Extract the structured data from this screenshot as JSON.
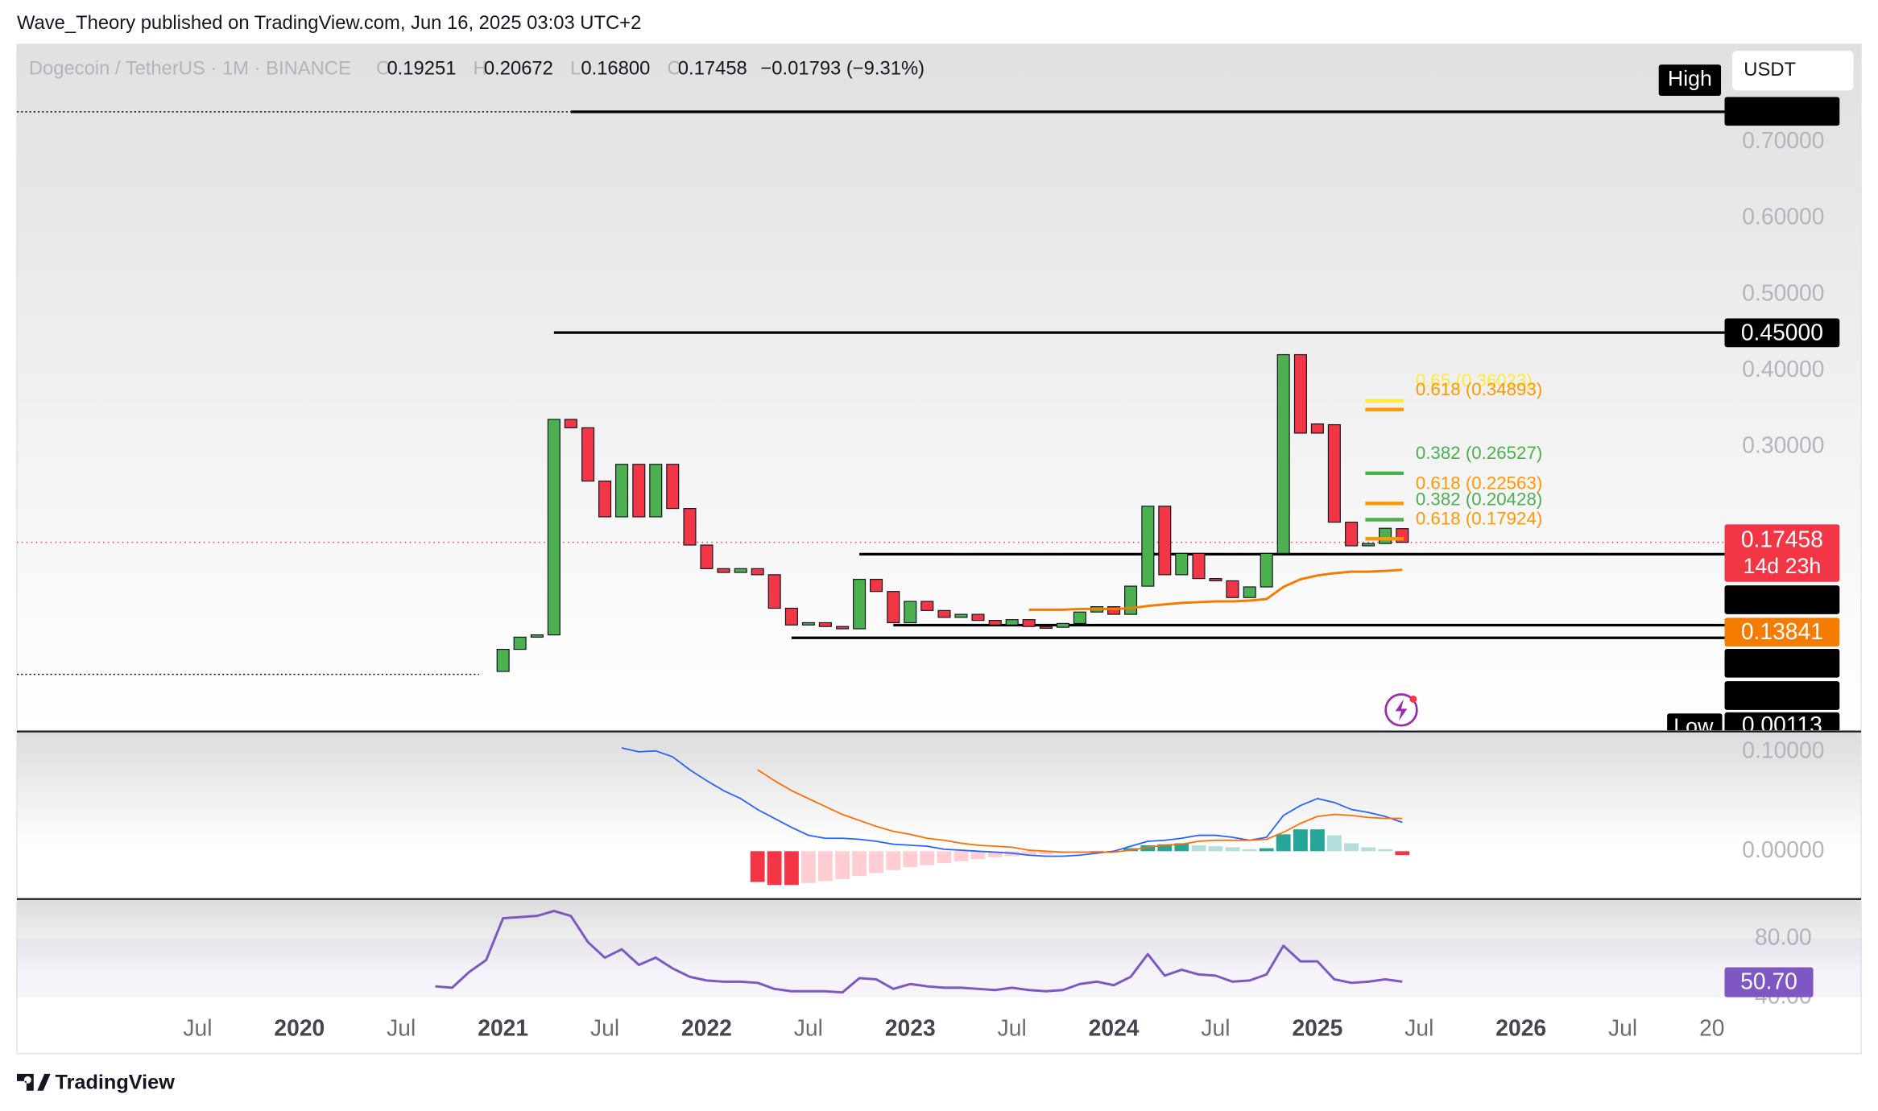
{
  "header": {
    "byline": "Wave_Theory published on TradingView.com, Jun 16, 2025 03:03 UTC+2",
    "symbol": "Dogecoin / TetherUS · 1M · BINANCE",
    "ohlc": [
      {
        "key": "O",
        "value": 0.19251
      },
      {
        "key": "H",
        "value": 0.20672
      },
      {
        "key": "L",
        "value": 0.168,
        "label": "0.16800"
      },
      {
        "key": "C",
        "value": 0.17458
      }
    ],
    "change": "−0.01793 (−9.31%)",
    "currency": "USDT",
    "brand": "TradingView"
  },
  "chart_data": [
    {
      "type": "candlestick",
      "up_color": "#4caf50",
      "down_color": "#f23645",
      "x": [
        2021,
        2021.083,
        2021.167,
        2021.25,
        2021.333,
        2021.417,
        2021.5,
        2021.583,
        2021.667,
        2021.75,
        2021.833,
        2021.917,
        2022,
        2022.083,
        2022.167,
        2022.25,
        2022.333,
        2022.417,
        2022.5,
        2022.583,
        2022.667,
        2022.75,
        2022.833,
        2022.917,
        2023,
        2023.083,
        2023.167,
        2023.25,
        2023.333,
        2023.417,
        2023.5,
        2023.583,
        2023.667,
        2023.75,
        2023.833,
        2023.917,
        2024,
        2024.083,
        2024.167,
        2024.25,
        2024.333,
        2024.417,
        2024.5,
        2024.583,
        2024.667,
        2024.75,
        2024.833,
        2024.917,
        2025,
        2025.083,
        2025.167,
        2025.25,
        2025.333,
        2025.417
      ],
      "open": [
        0.005,
        0.034,
        0.05,
        0.053,
        0.336,
        0.325,
        0.255,
        0.208,
        0.277,
        0.208,
        0.277,
        0.219,
        0.171,
        0.14,
        0.135,
        0.14,
        0.132,
        0.088,
        0.066,
        0.069,
        0.064,
        0.061,
        0.126,
        0.11,
        0.069,
        0.097,
        0.085,
        0.076,
        0.08,
        0.072,
        0.066,
        0.073,
        0.064,
        0.063,
        0.068,
        0.083,
        0.09,
        0.08,
        0.117,
        0.222,
        0.132,
        0.16,
        0.127,
        0.124,
        0.102,
        0.116,
        0.16,
        0.421,
        0.33,
        0.329,
        0.201,
        0.17,
        0.173,
        0.19251
      ],
      "high": {
        "value": 0.73995,
        "label": "High"
      },
      "low": {
        "value": 0.00113,
        "label": "Low"
      },
      "close": [
        0.034,
        0.05,
        0.053,
        0.336,
        0.325,
        0.255,
        0.208,
        0.277,
        0.208,
        0.277,
        0.219,
        0.171,
        0.14,
        0.135,
        0.14,
        0.132,
        0.088,
        0.066,
        0.069,
        0.064,
        0.061,
        0.126,
        0.11,
        0.069,
        0.097,
        0.085,
        0.076,
        0.08,
        0.072,
        0.066,
        0.073,
        0.064,
        0.063,
        0.068,
        0.083,
        0.09,
        0.08,
        0.117,
        0.222,
        0.132,
        0.16,
        0.127,
        0.124,
        0.102,
        0.116,
        0.16,
        0.421,
        0.318,
        0.318,
        0.201,
        0.17,
        0.173,
        0.193,
        0.17458
      ],
      "xlim": [
        2018.612,
        2027
      ],
      "xticks": [
        {
          "value": 2019.5,
          "label": "Jul"
        },
        2020,
        {
          "value": 2020.5,
          "label": "Jul"
        },
        2021,
        {
          "value": 2021.5,
          "label": "Jul"
        },
        2022,
        {
          "value": 2022.5,
          "label": "Jul"
        },
        2023,
        {
          "value": 2023.5,
          "label": "Jul"
        },
        2024,
        {
          "value": 2024.5,
          "label": "Jul"
        },
        2025,
        {
          "value": 2025.5,
          "label": "Jul"
        },
        2026,
        {
          "value": 2026.5,
          "label": "Jul"
        },
        {
          "value": 2027,
          "label": "20"
        }
      ],
      "ylim": [
        -0.0723,
        0.8286
      ],
      "yticks": [
        {
          "value": 0.3,
          "label": "0.30000"
        },
        {
          "value": 0.4,
          "label": "0.40000"
        },
        {
          "value": 0.5,
          "label": "0.50000"
        },
        {
          "value": 0.6,
          "label": "0.60000"
        },
        {
          "value": 0.7,
          "label": "0.70000"
        }
      ],
      "grid": false,
      "ema": {
        "color": "#f57c00",
        "x": [
          2023.583,
          2023.667,
          2023.75,
          2023.833,
          2023.917,
          2024,
          2024.083,
          2024.167,
          2024.25,
          2024.333,
          2024.417,
          2024.5,
          2024.583,
          2024.667,
          2024.75,
          2024.833,
          2024.917,
          2025,
          2025.083,
          2025.167,
          2025.25,
          2025.333,
          2025.417
        ],
        "values": [
          0.086,
          0.086,
          0.086,
          0.087,
          0.087,
          0.087,
          0.088,
          0.091,
          0.093,
          0.095,
          0.096,
          0.097,
          0.097,
          0.098,
          0.1,
          0.116,
          0.126,
          0.131,
          0.134,
          0.136,
          0.136,
          0.137,
          0.13841
        ]
      },
      "levels": [
        {
          "value": 0.73995,
          "x": 2021.333
        },
        {
          "value": 0.45,
          "label": "0.45000",
          "x": 2021.25
        },
        {
          "value": 0.15893,
          "x": 2022.75
        },
        {
          "value": 0.06581,
          "x": 2022.917
        },
        {
          "value": 0.04914,
          "x": 2022.417
        }
      ],
      "countdown": "14d 23h",
      "fibs": [
        {
          "value": 0.36023,
          "label": "0.65 (0.36023)",
          "color": "#ffeb3b"
        },
        {
          "value": 0.34893,
          "label": "0.618 (0.34893)",
          "color": "#ff9800"
        },
        {
          "value": 0.26527,
          "label": "0.382 (0.26527)",
          "color": "#4caf50"
        },
        {
          "value": 0.22563,
          "label": "0.618 (0.22563)",
          "color": "#ff9800"
        },
        {
          "value": 0.20428,
          "label": "0.382 (0.20428)",
          "color": "#4caf50"
        },
        {
          "value": 0.17924,
          "label": "0.618 (0.17924)",
          "color": "#ff9800"
        }
      ]
    },
    {
      "type": "macd",
      "ylim": [
        -0.047,
        0.1193
      ],
      "yticks": [
        {
          "value": 0.1,
          "label": "0.10000"
        },
        {
          "value": 0,
          "label": "0.00000"
        }
      ],
      "grid": false,
      "macd": {
        "color": "#2962ff",
        "x": [
          2021.583,
          2021.667,
          2021.75,
          2021.833,
          2021.917,
          2022,
          2022.083,
          2022.167,
          2022.25,
          2022.333,
          2022.417,
          2022.5,
          2022.583,
          2022.667,
          2022.75,
          2022.833,
          2022.917,
          2023,
          2023.083,
          2023.167,
          2023.25,
          2023.333,
          2023.417,
          2023.5,
          2023.583,
          2023.667,
          2023.75,
          2023.833,
          2023.917,
          2024,
          2024.083,
          2024.167,
          2024.25,
          2024.333,
          2024.417,
          2024.5,
          2024.583,
          2024.667,
          2024.75,
          2024.833,
          2024.917,
          2025,
          2025.083,
          2025.167,
          2025.25,
          2025.333,
          2025.417
        ],
        "values": [
          0.104,
          0.1,
          0.101,
          0.095,
          0.082,
          0.071,
          0.061,
          0.053,
          0.042,
          0.033,
          0.024,
          0.016,
          0.013,
          0.013,
          0.012,
          0.01,
          0.007,
          0.006,
          0.005,
          0.002,
          0.001,
          0,
          -0.001,
          -0.002,
          -0.004,
          -0.005,
          -0.005,
          -0.004,
          -0.002,
          0,
          0.005,
          0.01,
          0.011,
          0.013,
          0.016,
          0.016,
          0.014,
          0.011,
          0.014,
          0.036,
          0.046,
          0.053,
          0.049,
          0.042,
          0.039,
          0.035,
          0.029
        ]
      },
      "signal": {
        "color": "#ff6d00",
        "x": [
          2022.25,
          2022.333,
          2022.417,
          2022.5,
          2022.583,
          2022.667,
          2022.75,
          2022.833,
          2022.917,
          2023,
          2023.083,
          2023.167,
          2023.25,
          2023.333,
          2023.417,
          2023.5,
          2023.583,
          2023.667,
          2023.75,
          2023.833,
          2023.917,
          2024,
          2024.083,
          2024.167,
          2024.25,
          2024.333,
          2024.417,
          2024.5,
          2024.583,
          2024.667,
          2024.75,
          2024.833,
          2024.917,
          2025,
          2025.083,
          2025.167,
          2025.25,
          2025.333,
          2025.417
        ],
        "values": [
          0.082,
          0.071,
          0.061,
          0.053,
          0.045,
          0.037,
          0.031,
          0.025,
          0.02,
          0.017,
          0.013,
          0.011,
          0.008,
          0.006,
          0.005,
          0.004,
          0.001,
          0,
          -0.001,
          -0.001,
          -0.001,
          -0.001,
          0.001,
          0.004,
          0.006,
          0.007,
          0.01,
          0.011,
          0.011,
          0.011,
          0.012,
          0.019,
          0.028,
          0.035,
          0.037,
          0.036,
          0.034,
          0.033,
          0.033
        ]
      },
      "histogram": {
        "x": [
          2022.25,
          2022.333,
          2022.417,
          2022.5,
          2022.583,
          2022.667,
          2022.75,
          2022.833,
          2022.917,
          2023,
          2023.083,
          2023.167,
          2023.25,
          2023.333,
          2023.417,
          2023.5,
          2023.583,
          2023.667,
          2023.75,
          2023.833,
          2023.917,
          2024,
          2024.083,
          2024.167,
          2024.25,
          2024.333,
          2024.417,
          2024.5,
          2024.583,
          2024.667,
          2024.75,
          2024.833,
          2024.917,
          2025,
          2025.083,
          2025.167,
          2025.25,
          2025.333,
          2025.417
        ],
        "values": [
          -0.031,
          -0.034,
          -0.034,
          -0.032,
          -0.03,
          -0.028,
          -0.025,
          -0.022,
          -0.019,
          -0.016,
          -0.014,
          -0.012,
          -0.01,
          -0.008,
          -0.006,
          -0.005,
          -0.004,
          -0.003,
          -0.002,
          -0.001,
          -0.001,
          0,
          0.003,
          0.006,
          0.007,
          0.008,
          0.006,
          0.005,
          0.004,
          0.002,
          0.003,
          0.017,
          0.022,
          0.022,
          0.016,
          0.008,
          0.004,
          0.002,
          -0.004
        ],
        "colors": [
          "#f23645",
          "#ffcdd2",
          "#26a69a",
          "#b2dfdb"
        ]
      }
    },
    {
      "type": "line",
      "color": "#7e57c2",
      "ylim": [
        34.4,
        106
      ],
      "yticks": [
        {
          "value": 80,
          "label": "80.00"
        },
        {
          "value": 40,
          "label": "40.00"
        }
      ],
      "grid": false,
      "x": [
        2020.667,
        2020.75,
        2020.833,
        2020.917,
        2021,
        2021.083,
        2021.167,
        2021.25,
        2021.333,
        2021.417,
        2021.5,
        2021.583,
        2021.667,
        2021.75,
        2021.833,
        2021.917,
        2022,
        2022.083,
        2022.167,
        2022.25,
        2022.333,
        2022.417,
        2022.5,
        2022.583,
        2022.667,
        2022.75,
        2022.833,
        2022.917,
        2023,
        2023.083,
        2023.167,
        2023.25,
        2023.333,
        2023.417,
        2023.5,
        2023.583,
        2023.667,
        2023.75,
        2023.833,
        2023.917,
        2024,
        2024.083,
        2024.167,
        2024.25,
        2024.333,
        2024.417,
        2024.5,
        2024.583,
        2024.667,
        2024.75,
        2024.833,
        2024.917,
        2025,
        2025.083,
        2025.167,
        2025.25,
        2025.333,
        2025.417
      ],
      "values": [
        47.5,
        46.6,
        57.2,
        65.4,
        93.8,
        94.6,
        95.4,
        98.7,
        95.4,
        77.6,
        67,
        72.7,
        62.1,
        67,
        59.7,
        54,
        51.5,
        50.7,
        50.7,
        49.9,
        45.8,
        44.2,
        44.2,
        44.2,
        43.4,
        53.1,
        52.3,
        45.8,
        49.1,
        47.5,
        46.6,
        46.6,
        45.8,
        45,
        46.6,
        45,
        44.2,
        45,
        49.1,
        50.7,
        48.3,
        54,
        69.4,
        54.8,
        58.8,
        55.6,
        54.8,
        50.7,
        51.5,
        55.6,
        75.1,
        64.5,
        64.5,
        52.3,
        49.9,
        50.7,
        52.3,
        50.7
      ],
      "last_label": "50.70"
    }
  ]
}
